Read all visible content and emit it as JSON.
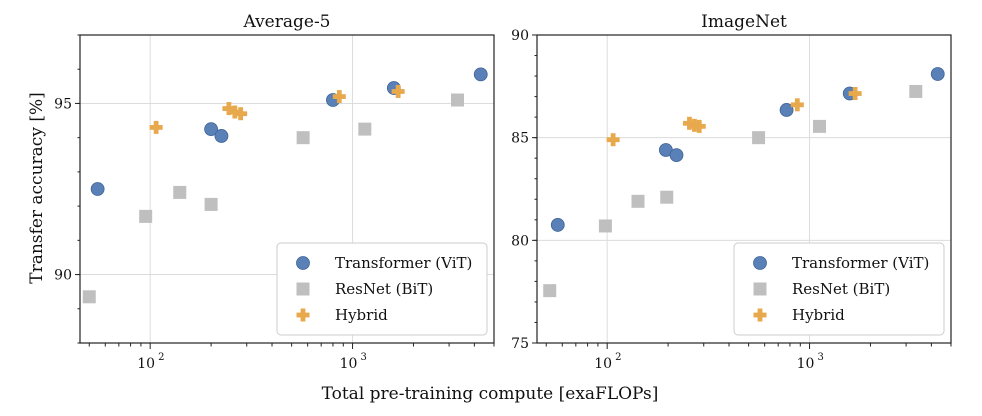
{
  "figure": {
    "shared_xlabel": "Total pre-training compute [exaFLOPs]",
    "shared_ylabel": "Transfer accuracy [%]"
  },
  "chart_data": [
    {
      "type": "scatter",
      "title": "Average-5",
      "xscale": "log",
      "xlim": [
        45,
        5000
      ],
      "ylim": [
        88,
        97
      ],
      "xticks": [
        {
          "value": 100,
          "label": "10",
          "sup": "2"
        },
        {
          "value": 1000,
          "label": "10",
          "sup": "3"
        }
      ],
      "yticks": [
        {
          "value": 90,
          "label": "90"
        },
        {
          "value": 95,
          "label": "95"
        }
      ],
      "legend_position": "lower-right",
      "series": [
        {
          "name": "Transformer (ViT)",
          "marker": "circle",
          "color": "#5a80b8",
          "points": [
            {
              "x": 55,
              "y": 92.5
            },
            {
              "x": 200,
              "y": 94.25
            },
            {
              "x": 225,
              "y": 94.05
            },
            {
              "x": 800,
              "y": 95.1
            },
            {
              "x": 1600,
              "y": 95.45
            },
            {
              "x": 4300,
              "y": 95.85
            }
          ]
        },
        {
          "name": "ResNet (BiT)",
          "marker": "square",
          "color": "#bfbfbf",
          "points": [
            {
              "x": 50,
              "y": 89.35
            },
            {
              "x": 95,
              "y": 91.7
            },
            {
              "x": 140,
              "y": 92.4
            },
            {
              "x": 200,
              "y": 92.05
            },
            {
              "x": 570,
              "y": 94.0
            },
            {
              "x": 1150,
              "y": 94.25
            },
            {
              "x": 3300,
              "y": 95.1
            }
          ]
        },
        {
          "name": "Hybrid",
          "marker": "plus",
          "color": "#e8a84c",
          "points": [
            {
              "x": 107,
              "y": 94.3
            },
            {
              "x": 245,
              "y": 94.85
            },
            {
              "x": 262,
              "y": 94.75
            },
            {
              "x": 280,
              "y": 94.7
            },
            {
              "x": 860,
              "y": 95.2
            },
            {
              "x": 1680,
              "y": 95.35
            }
          ]
        }
      ]
    },
    {
      "type": "scatter",
      "title": "ImageNet",
      "xscale": "log",
      "xlim": [
        45,
        5000
      ],
      "ylim": [
        75,
        90
      ],
      "xticks": [
        {
          "value": 100,
          "label": "10",
          "sup": "2"
        },
        {
          "value": 1000,
          "label": "10",
          "sup": "3"
        }
      ],
      "yticks": [
        {
          "value": 75,
          "label": "75"
        },
        {
          "value": 80,
          "label": "80"
        },
        {
          "value": 85,
          "label": "85"
        },
        {
          "value": 90,
          "label": "90"
        }
      ],
      "legend_position": "lower-right",
      "series": [
        {
          "name": "Transformer (ViT)",
          "marker": "circle",
          "color": "#5a80b8",
          "points": [
            {
              "x": 57,
              "y": 80.75
            },
            {
              "x": 195,
              "y": 84.4
            },
            {
              "x": 220,
              "y": 84.15
            },
            {
              "x": 770,
              "y": 86.35
            },
            {
              "x": 1580,
              "y": 87.15
            },
            {
              "x": 4300,
              "y": 88.1
            }
          ]
        },
        {
          "name": "ResNet (BiT)",
          "marker": "square",
          "color": "#bfbfbf",
          "points": [
            {
              "x": 52,
              "y": 77.55
            },
            {
              "x": 98,
              "y": 80.7
            },
            {
              "x": 142,
              "y": 81.9
            },
            {
              "x": 197,
              "y": 82.1
            },
            {
              "x": 560,
              "y": 85.0
            },
            {
              "x": 1120,
              "y": 85.55
            },
            {
              "x": 3350,
              "y": 87.25
            }
          ]
        },
        {
          "name": "Hybrid",
          "marker": "plus",
          "color": "#e8a84c",
          "points": [
            {
              "x": 107,
              "y": 84.9
            },
            {
              "x": 255,
              "y": 85.7
            },
            {
              "x": 270,
              "y": 85.6
            },
            {
              "x": 285,
              "y": 85.55
            },
            {
              "x": 870,
              "y": 86.6
            },
            {
              "x": 1680,
              "y": 87.15
            }
          ]
        }
      ]
    }
  ]
}
